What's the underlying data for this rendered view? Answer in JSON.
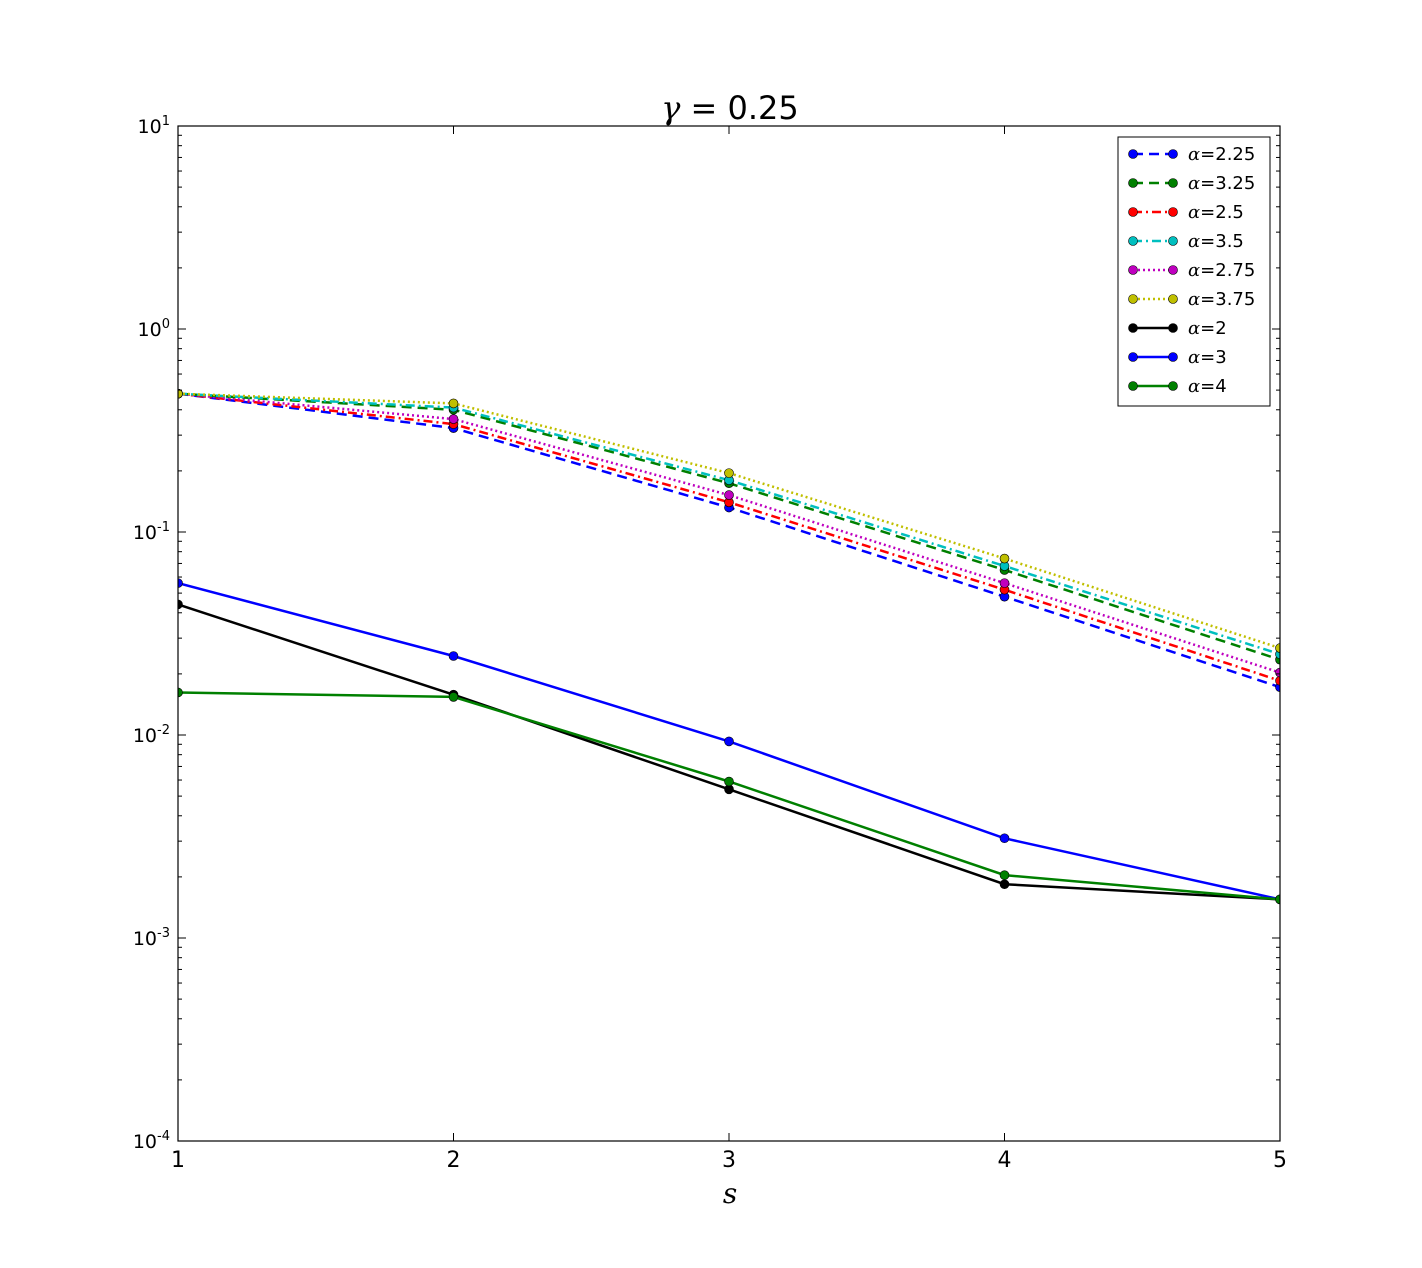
{
  "chart_data": {
    "type": "line",
    "title": {
      "symbol": "γ",
      "text": " = 0.25"
    },
    "xlabel": "s",
    "ylabel": "",
    "xlim": [
      1,
      5
    ],
    "ylim": [
      0.0001,
      10
    ],
    "yscale": "log",
    "grid": false,
    "legend_position": "top-right",
    "x_ticks": [
      "1",
      "2",
      "3",
      "4",
      "5"
    ],
    "y_ticks": [
      {
        "value": 0.0001,
        "base": "10",
        "exp": "-4"
      },
      {
        "value": 0.001,
        "base": "10",
        "exp": "-3"
      },
      {
        "value": 0.01,
        "base": "10",
        "exp": "-2"
      },
      {
        "value": 0.1,
        "base": "10",
        "exp": "-1"
      },
      {
        "value": 1,
        "base": "10",
        "exp": "0"
      },
      {
        "value": 10,
        "base": "10",
        "exp": "1"
      }
    ],
    "x": [
      1,
      2,
      3,
      4,
      5
    ],
    "series": [
      {
        "symbol": "α",
        "name": "=2.25",
        "color": "#0000ff",
        "style": "dashed",
        "values": [
          0.48,
          0.325,
          0.132,
          0.048,
          0.0172
        ]
      },
      {
        "symbol": "α",
        "name": "=3.25",
        "color": "#008000",
        "style": "dashed",
        "values": [
          0.48,
          0.4,
          0.174,
          0.065,
          0.0235
        ]
      },
      {
        "symbol": "α",
        "name": "=2.5",
        "color": "#ff0000",
        "style": "dashdot",
        "values": [
          0.48,
          0.34,
          0.14,
          0.052,
          0.0185
        ]
      },
      {
        "symbol": "α",
        "name": "=3.5",
        "color": "#00bfbf",
        "style": "dashdot",
        "values": [
          0.48,
          0.41,
          0.18,
          0.068,
          0.025
        ]
      },
      {
        "symbol": "α",
        "name": "=2.75",
        "color": "#bf00bf",
        "style": "dotted",
        "values": [
          0.48,
          0.36,
          0.152,
          0.056,
          0.0203
        ]
      },
      {
        "symbol": "α",
        "name": "=3.75",
        "color": "#bfbf00",
        "style": "dotted",
        "values": [
          0.48,
          0.43,
          0.195,
          0.074,
          0.0268
        ]
      },
      {
        "symbol": "α",
        "name": "=2",
        "color": "#000000",
        "style": "solid",
        "values": [
          0.044,
          0.0158,
          0.0054,
          0.00184,
          0.00155
        ]
      },
      {
        "symbol": "α",
        "name": "=3",
        "color": "#0000ff",
        "style": "solid",
        "values": [
          0.056,
          0.0245,
          0.0093,
          0.0031,
          0.00155
        ]
      },
      {
        "symbol": "α",
        "name": "=4",
        "color": "#008000",
        "style": "solid",
        "values": [
          0.0162,
          0.0154,
          0.0059,
          0.00204,
          0.00155
        ]
      }
    ]
  }
}
